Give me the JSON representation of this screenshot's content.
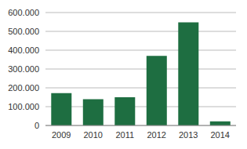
{
  "chart_data": {
    "type": "bar",
    "categories": [
      "2009",
      "2010",
      "2011",
      "2012",
      "2013",
      "2014"
    ],
    "values": [
      172000,
      140000,
      150000,
      370000,
      548000,
      22000
    ],
    "color": "#1e6e41",
    "ylim": [
      0,
      600000
    ],
    "yticks": [
      0,
      {
        "value": 100000,
        "label": "100.000"
      },
      {
        "value": 200000,
        "label": "200.000"
      },
      {
        "value": 300000,
        "label": "300.000"
      },
      {
        "value": 400000,
        "label": "400.000"
      },
      {
        "value": 500000,
        "label": "500.000"
      },
      {
        "value": 600000,
        "label": "600.000"
      }
    ],
    "grid": true
  }
}
